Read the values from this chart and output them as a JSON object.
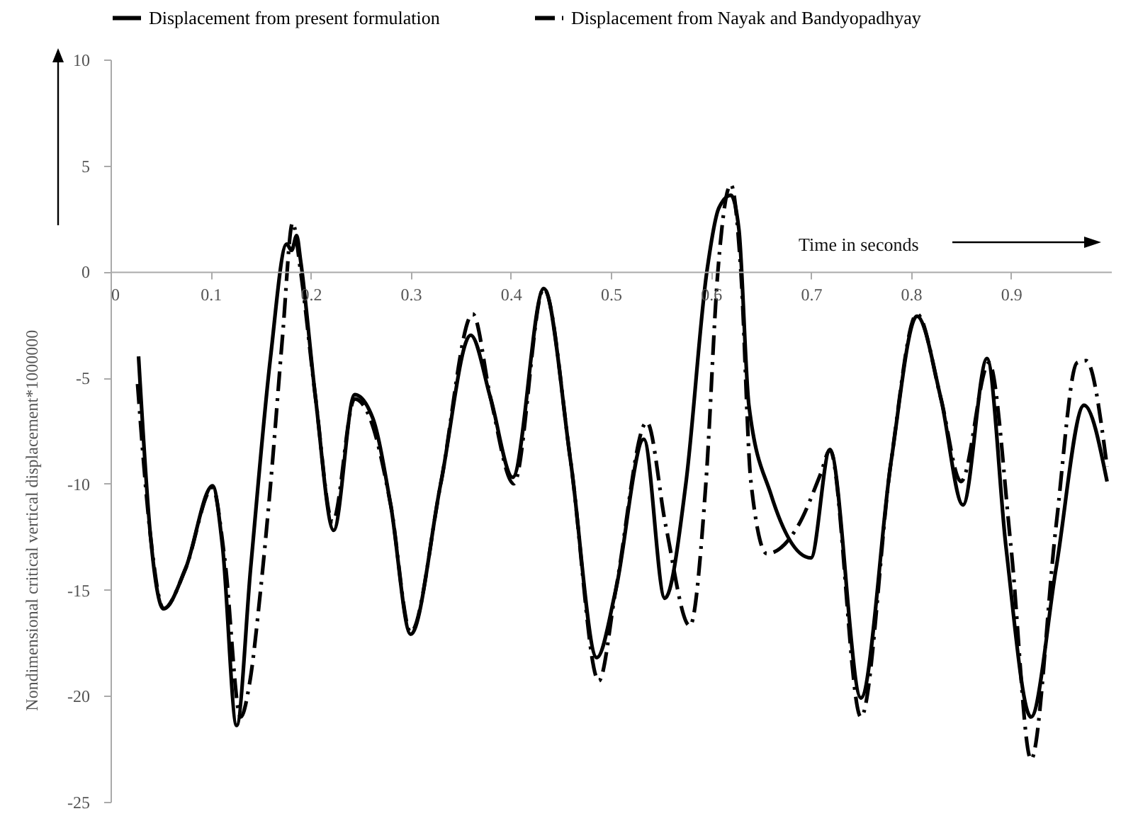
{
  "chart_data": {
    "type": "line",
    "xlabel": "Time in seconds",
    "ylabel": "Nondimensional critical vertical displacement*1000000",
    "xlim": [
      0,
      1
    ],
    "xticks": [
      0,
      0.1,
      0.2,
      0.3,
      0.4,
      0.5,
      0.6,
      0.7,
      0.8,
      0.9
    ],
    "ylim": [
      -25,
      10
    ],
    "yticks": [
      -25,
      -20,
      -15,
      -10,
      -5,
      0,
      5,
      10
    ],
    "grid": false,
    "legend": "top",
    "marker": "none",
    "series": [
      {
        "name": "Displacement from present formulation",
        "color": "#000000",
        "line_style": "solid",
        "x": [
          0.028,
          0.04,
          0.053,
          0.075,
          0.102,
          0.112,
          0.126,
          0.14,
          0.16,
          0.176,
          0.181,
          0.186,
          0.19,
          0.205,
          0.223,
          0.244,
          0.262,
          0.28,
          0.3,
          0.33,
          0.36,
          0.38,
          0.402,
          0.433,
          0.46,
          0.486,
          0.505,
          0.533,
          0.554,
          0.575,
          0.596,
          0.608,
          0.62,
          0.628,
          0.638,
          0.66,
          0.7,
          0.719,
          0.75,
          0.78,
          0.806,
          0.83,
          0.852,
          0.876,
          0.895,
          0.92,
          0.945,
          0.973,
          0.996
        ],
        "values": [
          -4,
          -12.5,
          -15.9,
          -14,
          -10.1,
          -13,
          -21.4,
          -14,
          -4,
          1.3,
          1,
          1.7,
          0.5,
          -6,
          -12.2,
          -5.8,
          -6.9,
          -11,
          -17.1,
          -10,
          -3,
          -6,
          -9.7,
          -0.8,
          -9,
          -18.2,
          -15,
          -7.9,
          -15.4,
          -10,
          0,
          3,
          3.6,
          2,
          -6.3,
          -10.5,
          -13.5,
          -8.4,
          -20.1,
          -9,
          -2.1,
          -6,
          -11,
          -4.1,
          -13,
          -21,
          -14,
          -6.3,
          -9.9
        ]
      },
      {
        "name": "Displacement from Nayak and Bandyopadhyay",
        "color": "#000000",
        "line_style": "dashed",
        "x": [
          0.027,
          0.04,
          0.053,
          0.075,
          0.102,
          0.114,
          0.13,
          0.139,
          0.15,
          0.16,
          0.172,
          0.182,
          0.19,
          0.205,
          0.222,
          0.244,
          0.26,
          0.28,
          0.3,
          0.33,
          0.362,
          0.38,
          0.403,
          0.433,
          0.46,
          0.488,
          0.505,
          0.536,
          0.555,
          0.579,
          0.595,
          0.607,
          0.62,
          0.63,
          0.64,
          0.656,
          0.687,
          0.71,
          0.719,
          0.75,
          0.78,
          0.806,
          0.83,
          0.85,
          0.878,
          0.9,
          0.92,
          0.945,
          0.966,
          0.975,
          0.996
        ],
        "values": [
          -5.3,
          -12.5,
          -15.9,
          -14,
          -10.2,
          -13.5,
          -21,
          -19.4,
          -15,
          -10,
          -3,
          2.3,
          0,
          -6,
          -11.8,
          -6,
          -7,
          -11,
          -17,
          -10,
          -2,
          -6,
          -10,
          -0.8,
          -9,
          -19.3,
          -15,
          -7.1,
          -12,
          -16.7,
          -10,
          0,
          4.1,
          0,
          -9.9,
          -13.3,
          -12,
          -9.5,
          -8.4,
          -21,
          -9,
          -2,
          -6,
          -9.9,
          -4.3,
          -13,
          -23,
          -12,
          -4.3,
          -4.2,
          -9.2
        ]
      }
    ]
  }
}
